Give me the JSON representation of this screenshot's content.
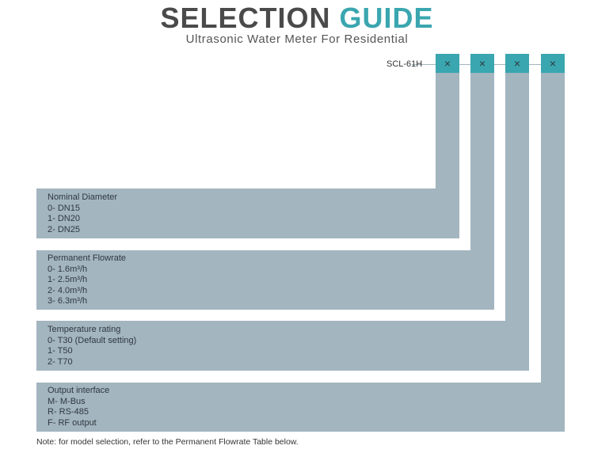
{
  "header": {
    "title_part1": "SELECTION",
    "title_part2": "GUIDE",
    "subtitle": "Ultrasonic Water Meter For Residential"
  },
  "model": {
    "code": "SCL-61H",
    "placeholder": "×"
  },
  "colors": {
    "accent": "#3aa6b0",
    "panel": "#a3b5bf",
    "title_dark": "#4a4a4a"
  },
  "sections": [
    {
      "heading": "Nominal Diameter",
      "options": [
        "0- DN15",
        "1- DN20",
        "2- DN25"
      ]
    },
    {
      "heading": "Permanent Flowrate",
      "options": [
        "0- 1.6m³/h",
        "1- 2.5m³/h",
        "2- 4.0m³/h",
        "3- 6.3m³/h"
      ]
    },
    {
      "heading": "Temperature rating",
      "options": [
        "0- T30 (Default setting)",
        "1- T50",
        "2- T70"
      ]
    },
    {
      "heading": "Output interface",
      "options": [
        "M- M-Bus",
        "R- RS-485",
        "F- RF output"
      ]
    }
  ],
  "note": "Note: for model selection, refer to the Permanent Flowrate Table below."
}
